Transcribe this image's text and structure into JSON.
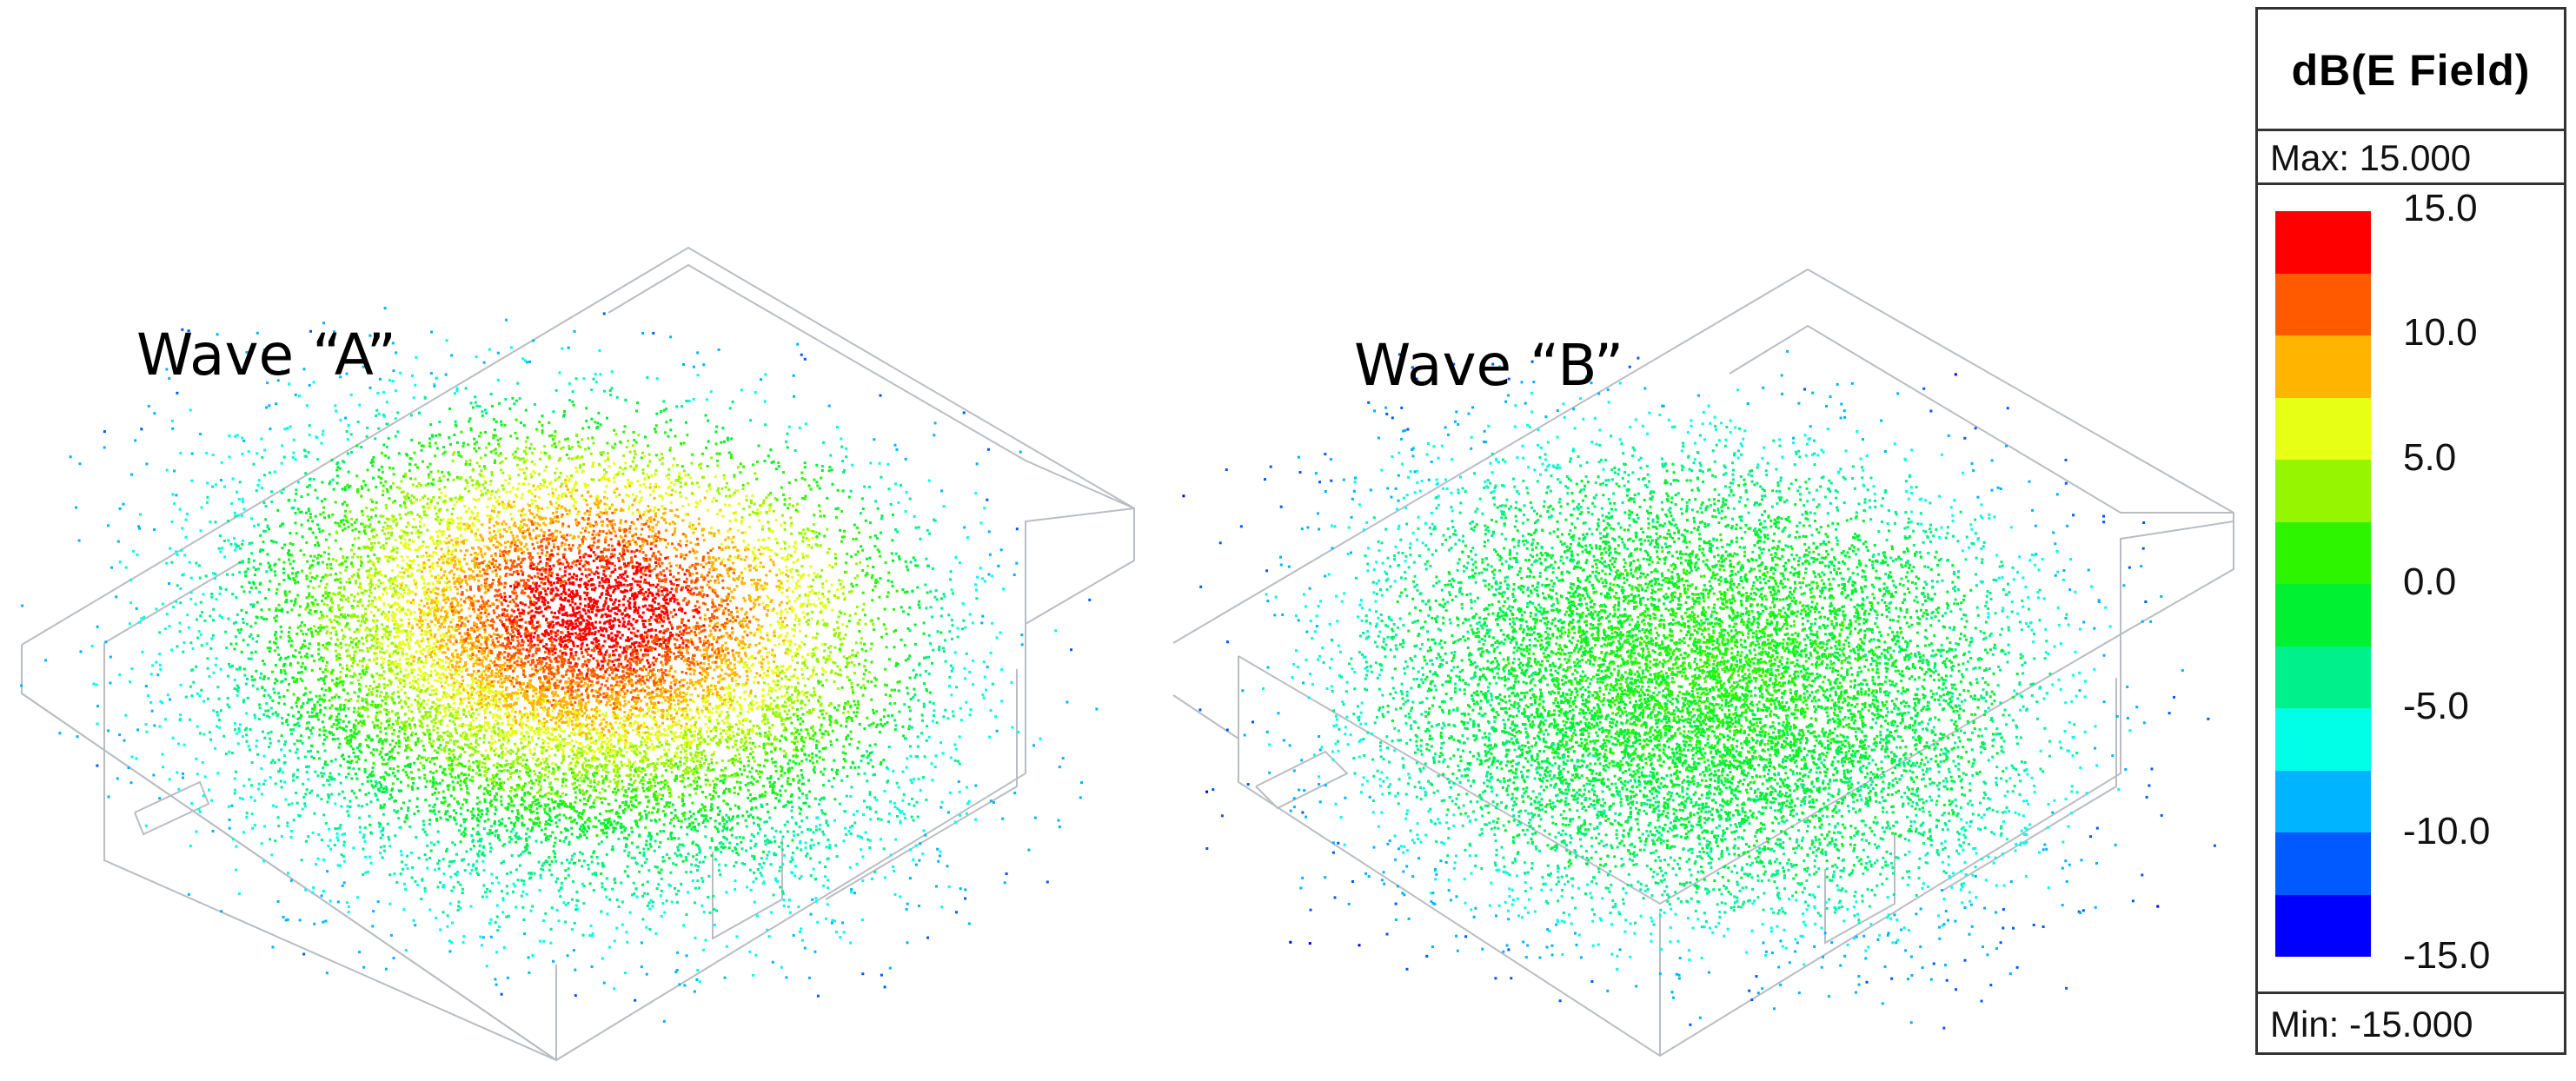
{
  "labels": {
    "wave_a": "Wave “A”",
    "wave_b": "Wave “B”"
  },
  "legend": {
    "title": "dB(E Field)",
    "max_text": "Max: 15.000",
    "min_text": "Min: -15.000",
    "ticks": [
      "15.0",
      "10.0",
      "5.0",
      "0.0",
      "-5.0",
      "-10.0",
      "-15.0"
    ],
    "colors": [
      "#ff0000",
      "#ff5a00",
      "#ffb400",
      "#e6ff14",
      "#96f500",
      "#2df500",
      "#00f032",
      "#00f08c",
      "#00ffe6",
      "#00b4ff",
      "#005aff",
      "#0000ff"
    ]
  }
}
